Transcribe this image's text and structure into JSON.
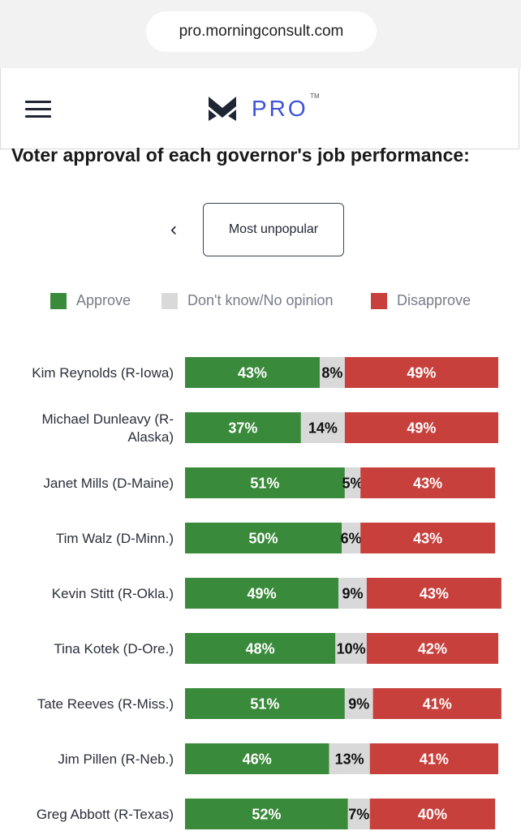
{
  "browser": {
    "url": "pro.morningconsult.com"
  },
  "header": {
    "menu_icon": "hamburger-menu-icon",
    "logo_icon": "morning-consult-m-logo",
    "logo_text": "PRO",
    "logo_tm": "TM"
  },
  "controls": {
    "prev_icon": "chevron-left-icon",
    "toggle_label": "Most unpopular"
  },
  "colors": {
    "approve": "#3a8a3b",
    "neutral": "#d9d9d9",
    "disapprove": "#c7403c",
    "brand_blue": "#3b52d6"
  },
  "chart_data": {
    "type": "bar",
    "orientation": "horizontal",
    "stacked": true,
    "title": "Voter approval of each governor's job performance:",
    "legend": {
      "position": "top",
      "entries": [
        "Approve",
        "Don't know/No opinion",
        "Disapprove"
      ]
    },
    "categories": [
      [
        "Kim Reynolds (R-Iowa)"
      ],
      [
        "Michael Dunleavy (R-",
        "Alaska)"
      ],
      [
        "Janet Mills (D-Maine)"
      ],
      [
        "Tim Walz (D-Minn.)"
      ],
      [
        "Kevin Stitt (R-Okla.)"
      ],
      [
        "Tina Kotek (D-Ore.)"
      ],
      [
        "Tate Reeves (R-Miss.)"
      ],
      [
        "Jim Pillen (R-Neb.)"
      ],
      [
        "Greg Abbott (R-Texas)"
      ]
    ],
    "series": [
      {
        "name": "Approve",
        "values": [
          43,
          37,
          51,
          50,
          49,
          48,
          51,
          46,
          52
        ]
      },
      {
        "name": "Don't know/No opinion",
        "values": [
          8,
          14,
          5,
          6,
          9,
          10,
          9,
          13,
          7
        ]
      },
      {
        "name": "Disapprove",
        "values": [
          49,
          49,
          43,
          43,
          43,
          42,
          41,
          41,
          40
        ]
      }
    ],
    "value_suffix": "%",
    "xlim": [
      0,
      100
    ]
  }
}
